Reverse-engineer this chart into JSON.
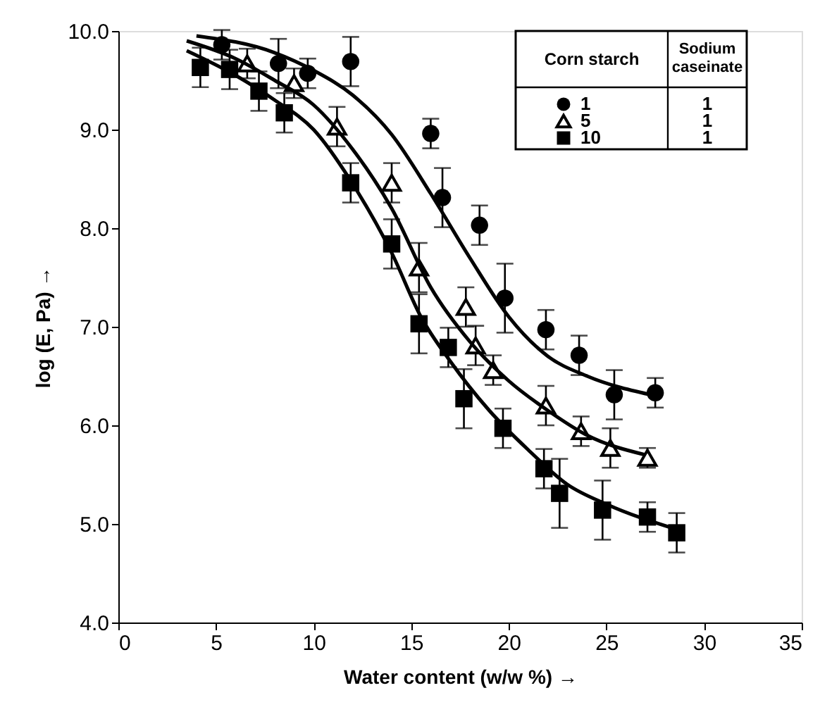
{
  "chart_data": {
    "type": "scatter",
    "xlabel": "Water content (w/w %) →",
    "ylabel": "log (E, Pa) →",
    "legend_title": "Corn starch",
    "legend": "top right",
    "annotations": [
      "Sodium caseinate",
      "1",
      "1",
      "1"
    ],
    "xlim": [
      0,
      35
    ],
    "xticks": [
      0,
      5,
      10,
      15,
      20,
      25,
      30,
      35
    ],
    "ylim": [
      4.0,
      10.0
    ],
    "yticks": [
      {
        "value": 4,
        "label": "4.0"
      },
      {
        "value": 5,
        "label": "5.0"
      },
      {
        "value": 6,
        "label": "6.0"
      },
      {
        "value": 7,
        "label": "7.0"
      },
      {
        "value": 8,
        "label": "8.0"
      },
      {
        "value": 9,
        "label": "9.0"
      },
      {
        "value": 10,
        "label": "10.0"
      }
    ],
    "grid": false,
    "series": [
      {
        "name": "1",
        "type": "scatter",
        "marker": "circle",
        "color": "#000000",
        "x": [
          5.3,
          8.2,
          9.7,
          11.9,
          16.0,
          16.6,
          18.5,
          19.8,
          21.9,
          23.6,
          25.4,
          27.5
        ],
        "values": [
          9.86,
          9.67,
          9.57,
          9.69,
          8.96,
          8.31,
          8.03,
          7.29,
          6.97,
          6.71,
          6.31,
          6.33
        ],
        "errors": [
          0.15,
          0.25,
          0.15,
          0.25,
          0.15,
          0.3,
          0.2,
          0.35,
          0.2,
          0.2,
          0.25,
          0.15
        ]
      },
      {
        "name": "5",
        "type": "scatter",
        "marker": "triangle",
        "color": "#000000",
        "x": [
          6.6,
          9.0,
          11.2,
          14.0,
          15.4,
          17.8,
          18.3,
          19.2,
          21.9,
          23.7,
          25.2,
          27.1
        ],
        "values": [
          9.67,
          9.47,
          9.03,
          8.46,
          7.6,
          7.2,
          6.81,
          6.56,
          6.2,
          5.94,
          5.77,
          5.67
        ],
        "errors": [
          0.15,
          0.15,
          0.2,
          0.2,
          0.25,
          0.2,
          0.2,
          0.15,
          0.2,
          0.15,
          0.2,
          0.1
        ]
      },
      {
        "name": "10",
        "type": "scatter",
        "marker": "square",
        "color": "#000000",
        "x": [
          4.2,
          5.7,
          7.2,
          8.5,
          11.9,
          14.0,
          15.4,
          16.9,
          17.7,
          19.7,
          21.8,
          22.6,
          24.8,
          27.1,
          28.6
        ],
        "values": [
          9.63,
          9.61,
          9.39,
          9.17,
          8.46,
          7.84,
          7.03,
          6.79,
          6.27,
          5.97,
          5.56,
          5.31,
          5.14,
          5.07,
          4.91
        ],
        "errors": [
          0.2,
          0.2,
          0.2,
          0.2,
          0.2,
          0.25,
          0.3,
          0.2,
          0.3,
          0.2,
          0.2,
          0.35,
          0.3,
          0.15,
          0.2
        ]
      },
      {
        "type": "line",
        "color": "#000000",
        "line_style": "solid",
        "x": [
          4.0,
          8.0,
          10.0,
          12.0,
          14.0,
          16.0,
          18.0,
          20.0,
          22.0,
          24.0,
          27.5
        ],
        "values": [
          9.95,
          9.78,
          9.6,
          9.35,
          8.95,
          8.35,
          7.7,
          7.1,
          6.7,
          6.5,
          6.3
        ]
      },
      {
        "type": "line",
        "color": "#000000",
        "line_style": "solid",
        "x": [
          3.5,
          6.0,
          8.0,
          10.0,
          12.0,
          14.0,
          16.0,
          18.0,
          20.0,
          22.0,
          24.0,
          27.0
        ],
        "values": [
          9.9,
          9.72,
          9.5,
          9.25,
          8.8,
          8.2,
          7.4,
          6.85,
          6.45,
          6.15,
          5.9,
          5.7
        ]
      },
      {
        "type": "line",
        "color": "#000000",
        "line_style": "solid",
        "x": [
          3.5,
          6.0,
          8.0,
          10.0,
          12.0,
          14.0,
          15.5,
          17.0,
          19.0,
          21.0,
          23.0,
          25.0,
          28.5
        ],
        "values": [
          9.8,
          9.55,
          9.3,
          9.0,
          8.45,
          7.75,
          7.1,
          6.65,
          6.15,
          5.75,
          5.4,
          5.2,
          4.95
        ]
      }
    ]
  }
}
